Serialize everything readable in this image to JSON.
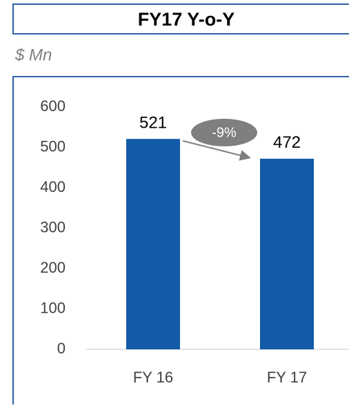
{
  "chart_data": {
    "type": "bar",
    "title": "FY17 Y-o-Y",
    "subtitle": "$ Mn",
    "categories": [
      "FY 16",
      "FY 17"
    ],
    "values": [
      521,
      472
    ],
    "color": "#135aa8",
    "ylim": [
      0,
      600
    ],
    "yticks": [
      0,
      100,
      200,
      300,
      400,
      500,
      600
    ],
    "annotations": [
      "-9%"
    ]
  }
}
